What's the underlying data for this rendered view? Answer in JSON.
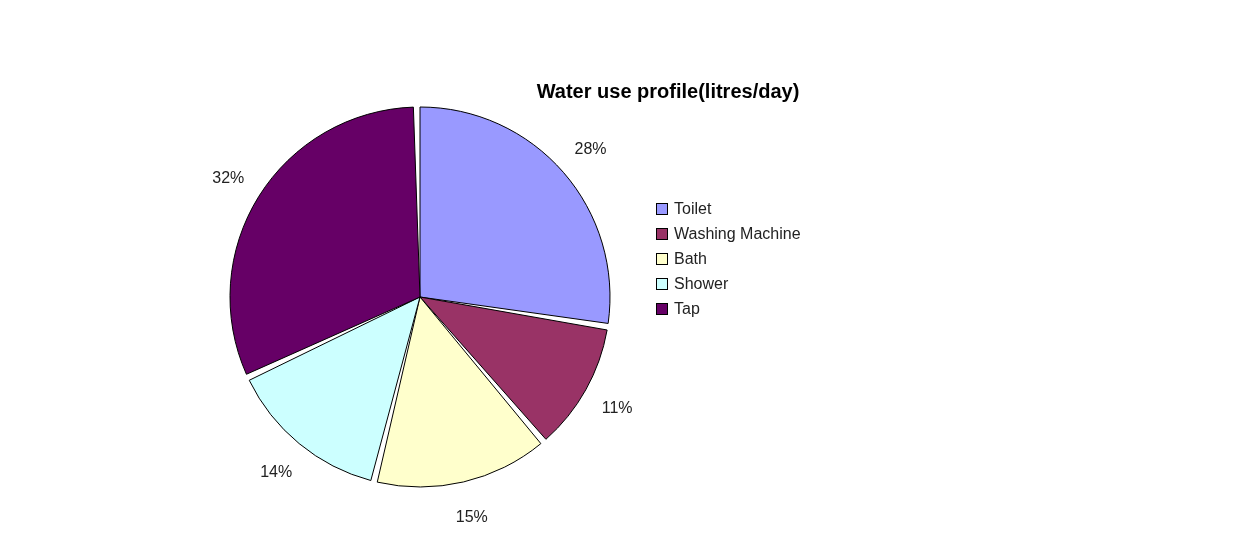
{
  "chart_data": {
    "type": "pie",
    "title": "Water use profile(litres/day)",
    "categories": [
      "Toilet",
      "Washing Machine",
      "Bath",
      "Shower",
      "Tap"
    ],
    "values": [
      28,
      11,
      15,
      14,
      32
    ],
    "value_labels": [
      "28%",
      "11%",
      "15%",
      "14%",
      "32%"
    ],
    "colors": [
      "#9999ff",
      "#993366",
      "#ffffcc",
      "#ccffff",
      "#660066"
    ],
    "legend": "right"
  }
}
